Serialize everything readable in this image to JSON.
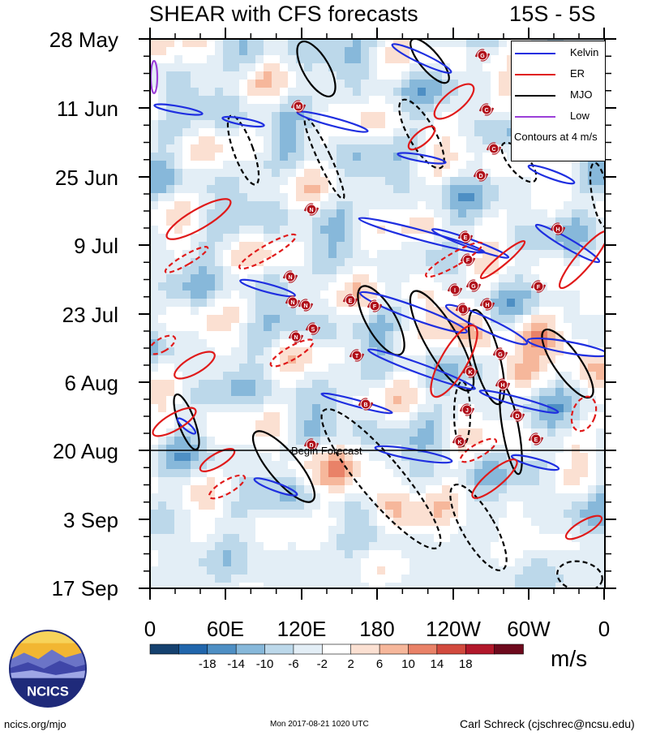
{
  "chart_data": {
    "type": "heatmap",
    "title": "SHEAR with CFS forecasts",
    "subtitle": "15S - 5S",
    "xlabel": "",
    "ylabel": "",
    "x_ticks": [
      "0",
      "60E",
      "120E",
      "180",
      "120W",
      "60W",
      "0"
    ],
    "y_ticks": [
      "28 May",
      "11 Jun",
      "25 Jun",
      "9 Jul",
      "23 Jul",
      "6 Aug",
      "20 Aug",
      "3 Sep",
      "17 Sep"
    ],
    "colorbar": {
      "units": "m/s",
      "levels": [
        -18,
        -14,
        -10,
        -6,
        -2,
        2,
        6,
        10,
        14,
        18
      ],
      "labels": [
        "-18",
        "-14",
        "-10",
        "-6",
        "-2",
        "2",
        "6",
        "10",
        "14",
        "18"
      ],
      "colors": [
        "#15416f",
        "#2166ac",
        "#4e8fc4",
        "#87b8da",
        "#bcd8ea",
        "#e3eef6",
        "#ffffff",
        "#fbe0d2",
        "#f6b79b",
        "#e98268",
        "#d24a3e",
        "#b2182b",
        "#6e0a1d"
      ]
    },
    "legend": [
      {
        "label": "Kelvin",
        "color": "#1f2fe0"
      },
      {
        "label": "ER",
        "color": "#e01a1a"
      },
      {
        "label": "MJO",
        "color": "#000000"
      },
      {
        "label": "Low",
        "color": "#9b3fd8"
      }
    ],
    "legend_position": "top-right",
    "contour_note": "Contours at 4 m/s",
    "forecast_marker": {
      "date": "20 Aug",
      "label": "Begin Forecast"
    },
    "storm_markers": [
      "B",
      "C",
      "C",
      "D",
      "E",
      "F",
      "G",
      "H",
      "I",
      "K",
      "M",
      "N",
      "N",
      "N",
      "N",
      "S",
      "T",
      "E",
      "F",
      "G",
      "H",
      "D",
      "E",
      "F",
      "G",
      "H",
      "I",
      "J",
      "K",
      "N",
      "D"
    ]
  },
  "footer": {
    "url": "ncics.org/mjo",
    "date": "Mon 2017-08-21 1020 UTC",
    "credit": "Carl Schreck (cjschrec@ncsu.edu)"
  },
  "logo": {
    "text": "NCICS"
  }
}
